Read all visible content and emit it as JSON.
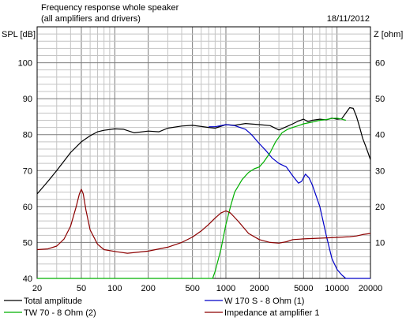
{
  "chart_data": {
    "type": "line",
    "title": "Frequency response whole speaker",
    "subtitle": "(all amplifiers and drivers)",
    "date": "18/11/2012",
    "ylabel": "SPL [dB]",
    "y2label": "Z [ohm]",
    "x_scale": "log",
    "xlim": [
      20,
      20000
    ],
    "ylim": [
      40,
      110
    ],
    "y2lim": [
      0,
      70
    ],
    "grid": true,
    "legend_position": "bottom",
    "x_ticks": [
      "20",
      "50",
      "100",
      "200",
      "500",
      "1000",
      "2000",
      "5000",
      "10000",
      "20000"
    ],
    "y_ticks": [
      "40",
      "50",
      "60",
      "70",
      "80",
      "90",
      "100"
    ],
    "y2_ticks": [
      "10",
      "20",
      "30",
      "40",
      "50",
      "60"
    ],
    "series": [
      {
        "name": "Total amplitude",
        "color": "#000000",
        "axis": "left",
        "x": [
          20,
          25,
          30,
          40,
          50,
          60,
          70,
          80,
          100,
          120,
          150,
          200,
          250,
          300,
          400,
          500,
          700,
          800,
          1000,
          1200,
          1500,
          2000,
          2500,
          3000,
          3500,
          4000,
          4500,
          5000,
          5500,
          6000,
          7000,
          8000,
          9000,
          10000,
          11000,
          12000,
          13000,
          14000,
          15000,
          16000,
          17000,
          18000,
          19000,
          20000
        ],
        "y": [
          63.5,
          67,
          70,
          75,
          78,
          79.7,
          80.8,
          81.2,
          81.6,
          81.5,
          80.5,
          81,
          80.8,
          81.8,
          82.4,
          82.6,
          82,
          81.8,
          82.8,
          82.6,
          83.1,
          82.8,
          82.5,
          81.3,
          82.2,
          83,
          83.8,
          84.3,
          83.6,
          84,
          84.3,
          84.1,
          84.6,
          84.3,
          84.4,
          86,
          87.5,
          87.3,
          85,
          82,
          79,
          77,
          75,
          73
        ]
      },
      {
        "name": "W 170 S - 8 Ohm (1)",
        "color": "#0000c8",
        "axis": "left",
        "x": [
          700,
          800,
          1000,
          1200,
          1500,
          1700,
          2000,
          2300,
          2600,
          3000,
          3500,
          4000,
          4500,
          4800,
          5200,
          5600,
          6000,
          7000,
          8000,
          9000,
          10000,
          11000,
          12000,
          14000,
          16000,
          20000
        ],
        "y": [
          82.2,
          82.2,
          82.8,
          82.5,
          81.5,
          80,
          77.5,
          75.5,
          73.5,
          72,
          71,
          68.5,
          66.5,
          67,
          69,
          68,
          66,
          60,
          52,
          45.5,
          42.5,
          41,
          40,
          40,
          40,
          40
        ]
      },
      {
        "name": "TW 70 - 8 Ohm (2)",
        "color": "#00b000",
        "axis": "left",
        "x": [
          20,
          760,
          800,
          900,
          1000,
          1100,
          1200,
          1400,
          1600,
          1800,
          2000,
          2200,
          2500,
          2800,
          3200,
          3600,
          4000,
          4500,
          5000,
          6000,
          7000,
          8000,
          9000,
          10000,
          11000,
          12000
        ],
        "y": [
          40,
          40,
          42,
          48,
          55,
          60,
          64,
          67.5,
          69.5,
          70.5,
          71,
          72.5,
          75,
          78,
          80.5,
          81.5,
          82,
          82.5,
          83,
          83.5,
          84,
          84.2,
          84.5,
          84.6,
          84.3,
          84
        ]
      },
      {
        "name": "Impedance at amplifier 1",
        "color": "#8c0000",
        "axis": "right",
        "x": [
          20,
          25,
          30,
          35,
          40,
          45,
          48,
          50,
          52,
          55,
          60,
          70,
          80,
          100,
          130,
          200,
          300,
          400,
          500,
          600,
          700,
          800,
          900,
          1000,
          1100,
          1300,
          1600,
          2000,
          2500,
          3000,
          3500,
          4000,
          5000,
          7000,
          10000,
          13000,
          15000,
          17000,
          20000
        ],
        "y": [
          8,
          8.2,
          9,
          11,
          14.5,
          20,
          23.5,
          24.8,
          23.5,
          19,
          13.5,
          9.5,
          8,
          7.5,
          7,
          7.6,
          8.7,
          10,
          11.5,
          13.2,
          15,
          16.8,
          18.2,
          18.8,
          18.2,
          15.8,
          12.5,
          10.8,
          10,
          9.8,
          10.2,
          10.8,
          11,
          11.2,
          11.4,
          11.6,
          11.8,
          12.2,
          12.5
        ]
      }
    ]
  }
}
